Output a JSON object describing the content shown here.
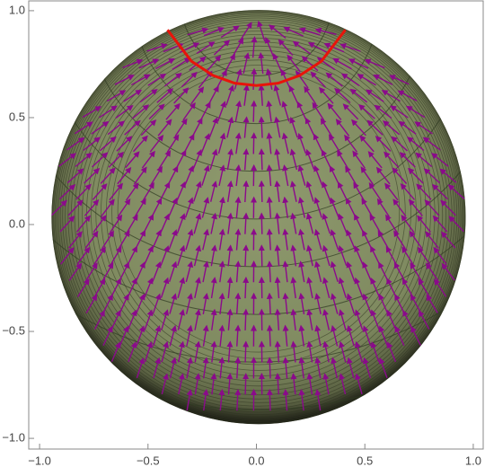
{
  "chart_data": {
    "type": "streamplot",
    "xlim": [
      -1.05,
      1.05
    ],
    "ylim": [
      -1.05,
      1.05
    ],
    "xticks": [
      {
        "value": -1,
        "label": "−1.0"
      },
      {
        "value": -0.5,
        "label": "−0.5"
      },
      {
        "value": 0,
        "label": "0.0"
      },
      {
        "value": 0.5,
        "label": "0.5"
      },
      {
        "value": 1,
        "label": "1.0"
      }
    ],
    "yticks": [
      {
        "value": -1,
        "label": "−1.0"
      },
      {
        "value": -0.5,
        "label": "−0.5"
      },
      {
        "value": 0,
        "label": "0.0"
      },
      {
        "value": 0.5,
        "label": "0.5"
      },
      {
        "value": 1,
        "label": "1.0"
      }
    ],
    "stream_color": "#8b0a8b",
    "series": [
      {
        "color": "#e8140a",
        "x": [
          -0.41,
          -0.3,
          -0.2,
          -0.1,
          0,
          0.1,
          0.2,
          0.3,
          0.41
        ],
        "y": [
          0.91,
          0.764,
          0.697,
          0.661,
          0.65,
          0.661,
          0.697,
          0.764,
          0.91
        ]
      }
    ]
  }
}
